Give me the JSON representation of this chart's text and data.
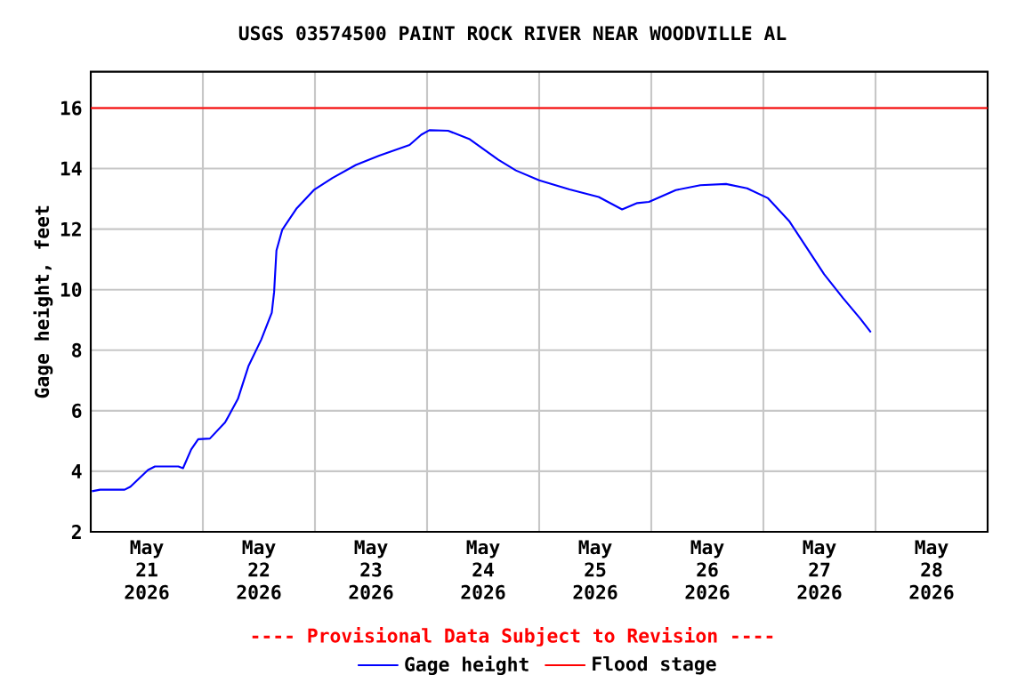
{
  "chart_data": {
    "type": "line",
    "title": "USGS 03574500 PAINT ROCK RIVER NEAR WOODVILLE AL",
    "ylabel": "Gage height, feet",
    "x": [
      "2026-05-21T00:15",
      "2026-05-21T02:00",
      "2026-05-21T07:15",
      "2026-05-21T08:30",
      "2026-05-21T12:15",
      "2026-05-21T13:45",
      "2026-05-21T18:45",
      "2026-05-21T19:45",
      "2026-05-21T21:30",
      "2026-05-21T23:00",
      "2026-05-22T01:30",
      "2026-05-22T04:45",
      "2026-05-22T07:30",
      "2026-05-22T09:45",
      "2026-05-22T12:30",
      "2026-05-22T14:45",
      "2026-05-22T15:15",
      "2026-05-22T15:45",
      "2026-05-22T17:00",
      "2026-05-22T20:00",
      "2026-05-22T23:45",
      "2026-05-23T03:45",
      "2026-05-23T08:45",
      "2026-05-23T13:45",
      "2026-05-23T20:15",
      "2026-05-23T22:45",
      "2026-05-24T00:30",
      "2026-05-24T04:30",
      "2026-05-24T09:00",
      "2026-05-24T15:15",
      "2026-05-24T19:00",
      "2026-05-25T00:00",
      "2026-05-25T06:30",
      "2026-05-25T12:45",
      "2026-05-25T17:45",
      "2026-05-25T21:00",
      "2026-05-25T23:30",
      "2026-05-26T05:15",
      "2026-05-26T10:30",
      "2026-05-26T16:00",
      "2026-05-26T20:30",
      "2026-05-27T01:00",
      "2026-05-27T05:30",
      "2026-05-27T09:15",
      "2026-05-27T13:00",
      "2026-05-27T17:00",
      "2026-05-27T20:45",
      "2026-05-27T23:00"
    ],
    "series": [
      {
        "name": "Gage height",
        "color": "#0000ff",
        "values": [
          3.34,
          3.39,
          3.39,
          3.49,
          4.04,
          4.16,
          4.16,
          4.1,
          4.72,
          5.06,
          5.08,
          5.61,
          6.39,
          7.47,
          8.35,
          9.24,
          9.92,
          11.29,
          11.98,
          12.67,
          13.29,
          13.69,
          14.12,
          14.43,
          14.78,
          15.12,
          15.27,
          15.25,
          14.98,
          14.29,
          13.94,
          13.61,
          13.31,
          13.06,
          12.65,
          12.86,
          12.9,
          13.29,
          13.45,
          13.49,
          13.35,
          13.02,
          12.27,
          11.39,
          10.51,
          9.73,
          9.04,
          8.59
        ]
      }
    ],
    "ref_lines": [
      {
        "axis": "y",
        "value": 16,
        "label": "Flood stage",
        "color": "#ff0000"
      }
    ],
    "annotations": [
      "---- Provisional Data Subject to Revision ----"
    ],
    "xlim": [
      "2026-05-21T00:00",
      "2026-05-29T00:00"
    ],
    "xticks": [
      {
        "value": "2026-05-21T12:00",
        "label": "May 21 2026"
      },
      {
        "value": "2026-05-22T00:00",
        "label": null
      },
      {
        "value": "2026-05-22T12:00",
        "label": "May 22 2026"
      },
      {
        "value": "2026-05-23T00:00",
        "label": null
      },
      {
        "value": "2026-05-23T12:00",
        "label": "May 23 2026"
      },
      {
        "value": "2026-05-24T00:00",
        "label": null
      },
      {
        "value": "2026-05-24T12:00",
        "label": "May 24 2026"
      },
      {
        "value": "2026-05-25T00:00",
        "label": null
      },
      {
        "value": "2026-05-25T12:00",
        "label": "May 25 2026"
      },
      {
        "value": "2026-05-26T00:00",
        "label": null
      },
      {
        "value": "2026-05-26T12:00",
        "label": "May 26 2026"
      },
      {
        "value": "2026-05-27T00:00",
        "label": null
      },
      {
        "value": "2026-05-27T12:00",
        "label": "May 27 2026"
      },
      {
        "value": "2026-05-28T00:00",
        "label": null
      },
      {
        "value": "2026-05-28T12:00",
        "label": "May 28 2026"
      }
    ],
    "ylim": [
      2,
      17.2
    ],
    "yticks": [
      2,
      4,
      6,
      8,
      10,
      12,
      14,
      16
    ],
    "grid": true,
    "legend": "bottom",
    "marker": "none",
    "line_style": "solid"
  }
}
